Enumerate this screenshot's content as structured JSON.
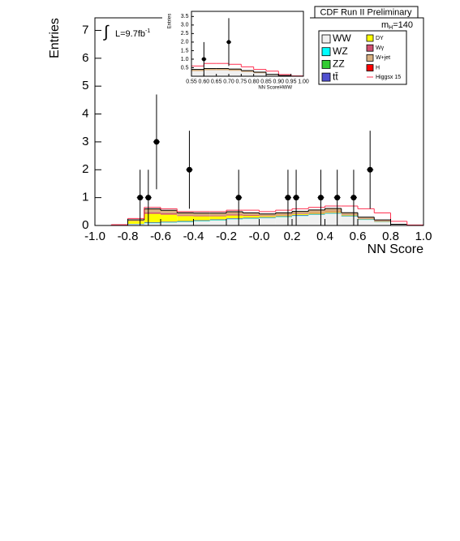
{
  "chart_data": [
    {
      "type": "stacked_histogram",
      "title": "CDF Run II Preliminary",
      "xlabel": "NN Score",
      "ylabel": "Entries",
      "xlim": [
        -1,
        1
      ],
      "ylim": [
        0,
        7.45
      ],
      "xticks": [
        {
          "value": -1,
          "label": "-1.0"
        },
        {
          "value": -0.8,
          "label": "-0.8"
        },
        {
          "value": -0.6,
          "label": "-0.6"
        },
        {
          "value": -0.4,
          "label": "-0.4"
        },
        {
          "value": -0.2,
          "label": "-0.2"
        },
        {
          "value": 0,
          "label": "-0.0"
        },
        {
          "value": 0.2,
          "label": "0.2"
        },
        {
          "value": 0.4,
          "label": "0.4"
        },
        {
          "value": 0.6,
          "label": "0.6"
        },
        {
          "value": 0.8,
          "label": "0.8"
        },
        {
          "value": 1,
          "label": "1.0"
        }
      ],
      "yticks": [
        0,
        1,
        2,
        3,
        4,
        5,
        6,
        7
      ],
      "bins": [
        -1,
        -0.9,
        -0.8,
        -0.7,
        -0.6,
        -0.5,
        -0.4,
        -0.3,
        -0.2,
        -0.1,
        0,
        0.1,
        0.2,
        0.3,
        0.4,
        0.5,
        0.6,
        0.7,
        0.8,
        0.9,
        1
      ],
      "series": [
        {
          "name": "WW",
          "color": "#f0f0f0",
          "values": [
            0,
            0.005,
            0.04,
            0.08,
            0.1,
            0.12,
            0.15,
            0.18,
            0.22,
            0.24,
            0.26,
            0.3,
            0.34,
            0.38,
            0.42,
            0.32,
            0.2,
            0.12,
            0.03,
            0
          ]
        },
        {
          "name": "WZ",
          "color": "#00ffff",
          "values": [
            0,
            0,
            0.005,
            0.01,
            0.01,
            0.01,
            0.01,
            0.01,
            0.01,
            0.01,
            0.01,
            0.01,
            0.01,
            0.01,
            0.01,
            0.01,
            0.01,
            0.005,
            0,
            0
          ]
        },
        {
          "name": "ZZ",
          "color": "#33cc33",
          "values": [
            0,
            0,
            0.005,
            0.01,
            0.01,
            0.01,
            0.01,
            0.01,
            0.01,
            0.01,
            0.01,
            0.01,
            0.01,
            0.01,
            0.01,
            0.01,
            0.01,
            0.005,
            0,
            0
          ]
        },
        {
          "name": "tt̄",
          "color": "#5050d0",
          "values": [
            0,
            0,
            0.01,
            0.02,
            0.02,
            0.02,
            0.02,
            0.02,
            0.02,
            0.02,
            0.02,
            0.02,
            0.02,
            0.02,
            0.02,
            0.02,
            0.01,
            0.01,
            0,
            0
          ]
        },
        {
          "name": "DY",
          "color": "#ffff00",
          "values": [
            0,
            0.01,
            0.1,
            0.3,
            0.25,
            0.18,
            0.14,
            0.11,
            0.1,
            0.07,
            0.04,
            0.03,
            0.03,
            0.03,
            0.03,
            0.02,
            0.01,
            0.01,
            0,
            0
          ]
        },
        {
          "name": "Wγ",
          "color": "#d05070",
          "values": [
            0,
            0,
            0.01,
            0.05,
            0.05,
            0.03,
            0.03,
            0.03,
            0.04,
            0.03,
            0.02,
            0.02,
            0.02,
            0.02,
            0.02,
            0.01,
            0.01,
            0.01,
            0,
            0
          ]
        },
        {
          "name": "W+jet",
          "color": "#d8b080",
          "values": [
            0,
            0.005,
            0.03,
            0.12,
            0.1,
            0.08,
            0.08,
            0.08,
            0.09,
            0.07,
            0.05,
            0.06,
            0.07,
            0.08,
            0.09,
            0.06,
            0.04,
            0.03,
            0.01,
            0
          ]
        },
        {
          "name": "H",
          "color": "#ff0000",
          "values": [
            0,
            0,
            0.002,
            0.005,
            0.005,
            0.005,
            0.005,
            0.005,
            0.005,
            0.005,
            0.005,
            0.005,
            0.005,
            0.005,
            0.01,
            0.01,
            0.01,
            0.01,
            0.005,
            0
          ]
        }
      ],
      "overlay": {
        "name": "Higgsx 15",
        "color": "#ff3050",
        "values": [
          0,
          0.03,
          0.25,
          0.65,
          0.6,
          0.5,
          0.5,
          0.5,
          0.55,
          0.55,
          0.5,
          0.55,
          0.6,
          0.65,
          0.7,
          0.7,
          0.6,
          0.45,
          0.15,
          0.02
        ]
      },
      "points": {
        "x": [
          -0.725,
          -0.675,
          -0.625,
          -0.425,
          -0.125,
          0.175,
          0.225,
          0.375,
          0.475,
          0.575,
          0.675
        ],
        "y": [
          1,
          1,
          3,
          2,
          1,
          1,
          1,
          1,
          1,
          1,
          2
        ],
        "err_low": [
          1,
          1,
          1.7,
          1.4,
          1,
          1,
          1,
          1,
          1,
          1,
          1.4
        ],
        "err_high": [
          1,
          1,
          1.7,
          1.4,
          1,
          1,
          1,
          1,
          1,
          1,
          1.4
        ]
      },
      "annotations": {
        "luminosity": {
          "integral": "∫",
          "text": "L=9.7fb",
          "sup": "-1"
        },
        "mass": {
          "text": "m",
          "sub": "H",
          "rest": "=140"
        }
      }
    },
    {
      "type": "stacked_histogram",
      "xlabel": "NN ScoreHWW",
      "ylabel": "Entries",
      "xlim": [
        0.55,
        1.0
      ],
      "ylim": [
        0,
        3.8
      ],
      "xticks": [
        {
          "value": 0.55,
          "label": "0.55"
        },
        {
          "value": 0.6,
          "label": "0.60"
        },
        {
          "value": 0.65,
          "label": "0.65"
        },
        {
          "value": 0.7,
          "label": "0.70"
        },
        {
          "value": 0.75,
          "label": "0.75"
        },
        {
          "value": 0.8,
          "label": "0.80"
        },
        {
          "value": 0.85,
          "label": "0.85"
        },
        {
          "value": 0.9,
          "label": "0.90"
        },
        {
          "value": 0.95,
          "label": "0.95"
        },
        {
          "value": 1.0,
          "label": "1.00"
        }
      ],
      "yticks": [
        0.5,
        {
          "value": 1,
          "label": "1.0"
        },
        1.5,
        {
          "value": 2,
          "label": "2.0"
        },
        2.5,
        {
          "value": 3,
          "label": "3.0"
        },
        3.5
      ],
      "bins": [
        0.55,
        0.6,
        0.65,
        0.7,
        0.75,
        0.8,
        0.85,
        0.9,
        0.95,
        1.0
      ],
      "series": [
        {
          "color": "#f0f0f0",
          "values": [
            0.3,
            0.35,
            0.35,
            0.32,
            0.25,
            0.18,
            0.08,
            0.03,
            0
          ]
        },
        {
          "color": "#d8b080",
          "values": [
            0.1,
            0.1,
            0.1,
            0.1,
            0.08,
            0.06,
            0.03,
            0.01,
            0
          ]
        }
      ],
      "overlay": {
        "color": "#ff3050",
        "values": [
          0.6,
          0.75,
          0.75,
          0.7,
          0.55,
          0.4,
          0.3,
          0.1,
          0.02
        ]
      },
      "points": {
        "x": [
          0.6,
          0.7
        ],
        "y": [
          1,
          2
        ],
        "err_low": [
          1,
          1.4
        ],
        "err_high": [
          1,
          1.4
        ]
      }
    }
  ]
}
